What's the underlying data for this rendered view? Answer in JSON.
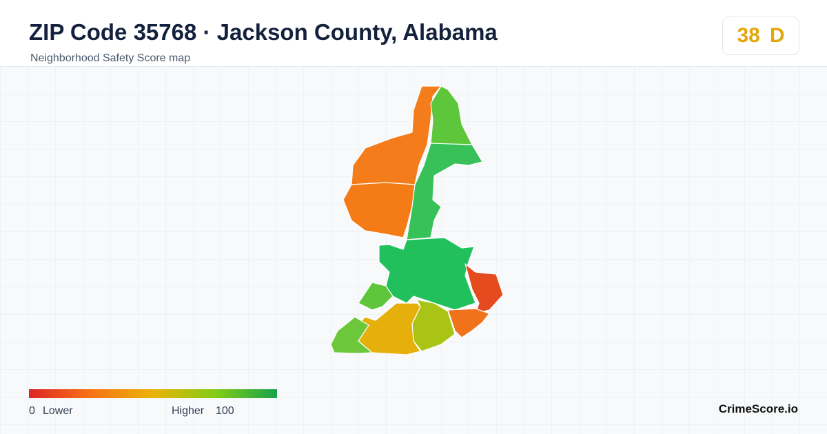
{
  "header": {
    "title": "ZIP Code 35768 · Jackson County, Alabama",
    "subtitle": "Neighborhood Safety Score map",
    "score": 38,
    "grade": "D"
  },
  "legend": {
    "min": 0,
    "min_label": "Lower",
    "max_label": "Higher",
    "max": 100
  },
  "footer": {
    "brand": "CrimeScore.io"
  }
}
